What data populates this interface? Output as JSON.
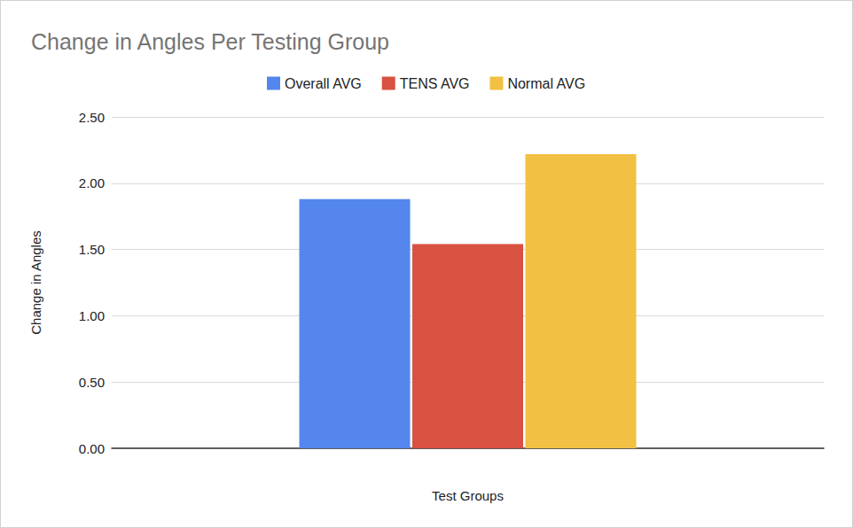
{
  "chart_data": {
    "type": "bar",
    "title": "Change in Angles Per Testing Group",
    "x_label": "Test Groups",
    "y_label": "Change in Angles",
    "categories": [
      null
    ],
    "series": [
      {
        "name": "Overall AVG",
        "color": "#5486ed",
        "values": [
          1.88
        ]
      },
      {
        "name": "TENS AVG",
        "color": "#d95141",
        "values": [
          1.54
        ]
      },
      {
        "name": "Normal AVG",
        "color": "#f2c042",
        "values": [
          2.22
        ]
      }
    ],
    "ylim": [
      0,
      2.5
    ],
    "yticks": [
      {
        "value": 0,
        "label": "0.00"
      },
      {
        "value": 0.5,
        "label": "0.50"
      },
      {
        "value": 1,
        "label": "1.00"
      },
      {
        "value": 1.5,
        "label": "1.50"
      },
      {
        "value": 2,
        "label": "2.00"
      },
      {
        "value": 2.5,
        "label": "2.50"
      }
    ],
    "grid": true,
    "legend": "top",
    "tick_labels": "y"
  }
}
